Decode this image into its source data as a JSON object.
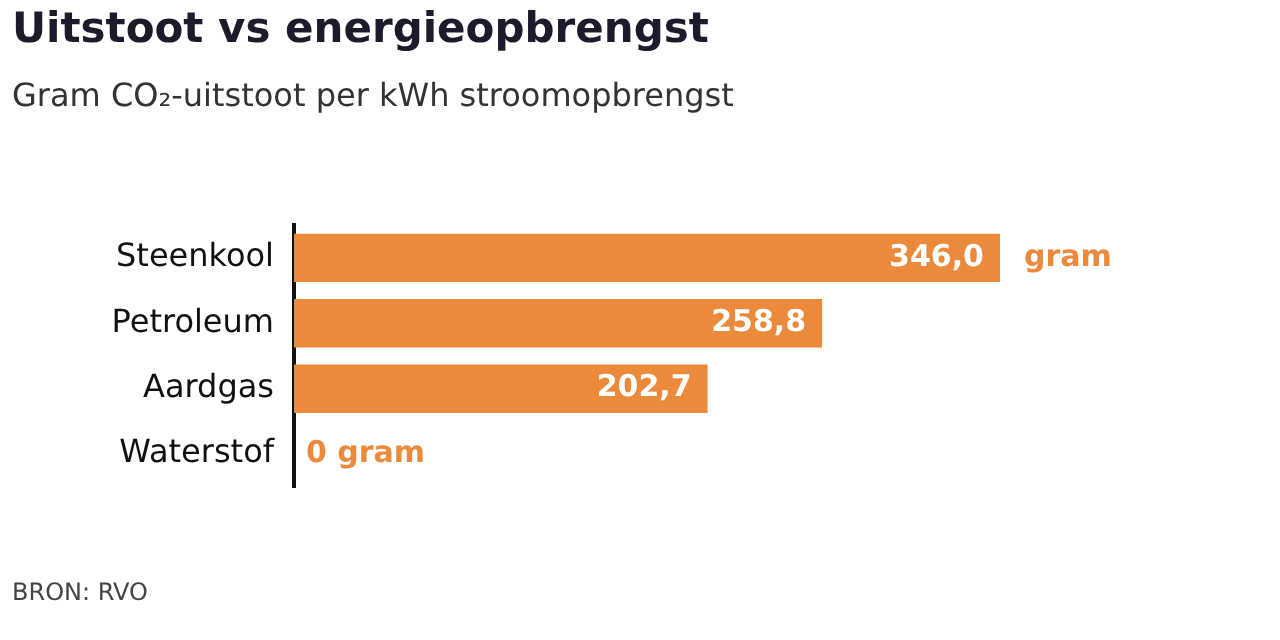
{
  "chart_data": {
    "type": "bar",
    "orientation": "horizontal",
    "title": "Uitstoot vs energieopbrengst",
    "subtitle": "Gram CO₂-uitstoot per kWh stroomopbrengst",
    "categories": [
      "Steenkool",
      "Petroleum",
      "Aardgas",
      "Waterstof"
    ],
    "values": [
      346.0,
      258.8,
      202.7,
      0
    ],
    "color": "#ec8a3c",
    "value_labels": [
      "346,0",
      "258,8",
      "202,7",
      "0 gram"
    ],
    "annotations": [
      {
        "text": "gram",
        "x": 346.0,
        "y": "Steenkool"
      },
      "BRON: RVO"
    ],
    "grid": false,
    "legend": false
  }
}
